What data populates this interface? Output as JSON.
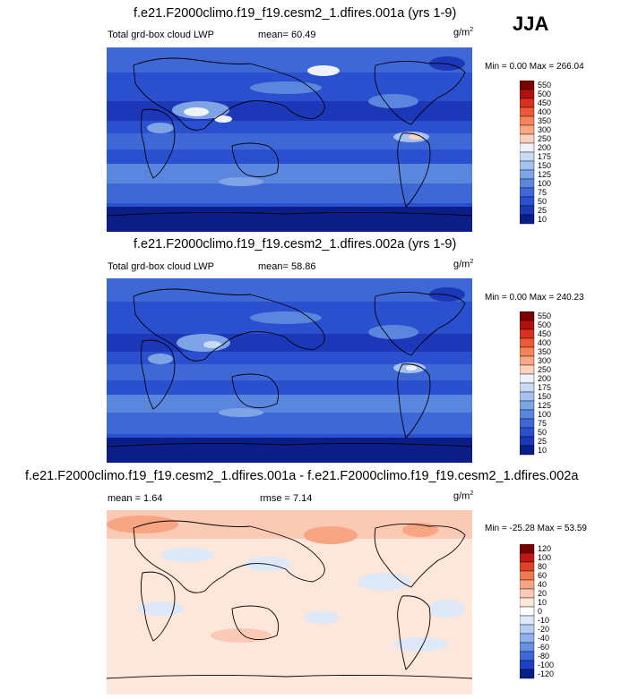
{
  "season": "JJA",
  "panels": [
    {
      "title": "f.e21.F2000climo.f19_f19.cesm2_1.dfires.001a (yrs 1-9)",
      "variable": "Total grd-box cloud LWP",
      "stat1": "mean=  60.49",
      "stat2": "",
      "units_base": "g/m",
      "units_exp": "2",
      "minmax": "Min =   0.00 Max = 266.04",
      "colorbar_labels": [
        "550",
        "500",
        "450",
        "400",
        "350",
        "300",
        "250",
        "200",
        "175",
        "150",
        "125",
        "100",
        "75",
        "50",
        "25",
        "10"
      ]
    },
    {
      "title": "f.e21.F2000climo.f19_f19.cesm2_1.dfires.002a (yrs 1-9)",
      "variable": "Total grd-box cloud LWP",
      "stat1": "mean=  58.86",
      "stat2": "",
      "units_base": "g/m",
      "units_exp": "2",
      "minmax": "Min =   0.00 Max = 240.23",
      "colorbar_labels": [
        "550",
        "500",
        "450",
        "400",
        "350",
        "300",
        "250",
        "200",
        "175",
        "150",
        "125",
        "100",
        "75",
        "50",
        "25",
        "10"
      ]
    },
    {
      "title": "f.e21.F2000climo.f19_f19.cesm2_1.dfires.001a - f.e21.F2000climo.f19_f19.cesm2_1.dfires.002a",
      "variable": "",
      "stat1": "mean =   1.64",
      "stat2": "rmse =   7.14",
      "units_base": "g/m",
      "units_exp": "2",
      "minmax": "Min = -25.28 Max =  53.59",
      "colorbar_labels": [
        "120",
        "100",
        "80",
        "60",
        "40",
        "20",
        "10",
        "0",
        "-10",
        "-20",
        "-40",
        "-60",
        "-80",
        "-100",
        "-120"
      ]
    }
  ],
  "colors": {
    "abs_scale": [
      "#7a0000",
      "#b01010",
      "#d93020",
      "#ec5a38",
      "#f5845a",
      "#f9a886",
      "#fcd2be",
      "#eef2fa",
      "#c9daf5",
      "#a4c1ef",
      "#7ea4e6",
      "#5b86de",
      "#3d68d6",
      "#2a4fcf",
      "#1c37b8",
      "#0b1e88"
    ],
    "diff_scale": [
      "#7a0000",
      "#c01818",
      "#e04428",
      "#f07a52",
      "#f7a582",
      "#fbcab4",
      "#fde6da",
      "#ffffff",
      "#dde8f8",
      "#b8cdf1",
      "#92b1ea",
      "#6890e2",
      "#3f68d8",
      "#1d3fc4",
      "#0b1e88"
    ],
    "map_deep": "#1c37b8",
    "map_mid": "#3d68d6",
    "map_light": "#7ea4e6",
    "map_pale": "#c9daf5",
    "diff_base": "#fde6da"
  }
}
